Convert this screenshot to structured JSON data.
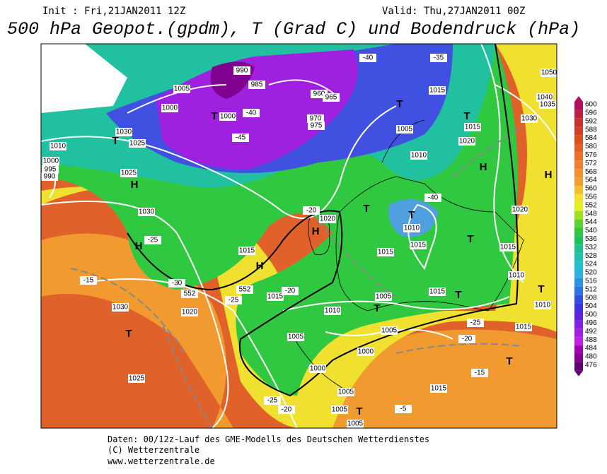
{
  "header": {
    "init": "Init : Fri,21JAN2011 12Z",
    "valid": "Valid: Thu,27JAN2011 00Z",
    "title": "500 hPa Geopot.(gpdm), T (Grad C) und Bodendruck (hPa)"
  },
  "colorbar": {
    "labels": [
      "600",
      "596",
      "592",
      "588",
      "584",
      "580",
      "576",
      "572",
      "568",
      "564",
      "560",
      "556",
      "552",
      "548",
      "544",
      "540",
      "536",
      "532",
      "528",
      "524",
      "520",
      "516",
      "512",
      "508",
      "504",
      "500",
      "496",
      "492",
      "488",
      "484",
      "480",
      "476"
    ]
  },
  "map": {
    "labels": [
      "990",
      "985",
      "1005",
      "1000",
      "T",
      "1000",
      "960",
      "965",
      "970",
      "975",
      "-40",
      "-45",
      "T",
      "1015",
      "-35",
      "-40",
      "T",
      "1015",
      "1020",
      "1005",
      "1010",
      "H",
      "T",
      "1010",
      "-40",
      "H",
      "1030",
      "1050",
      "1040",
      "1035",
      "T",
      "1030",
      "1025",
      "1010",
      "1000",
      "995",
      "990",
      "H",
      "1025",
      "1030",
      "H",
      "-25",
      "-30",
      "552",
      "-15",
      "1030",
      "1020",
      "-25",
      "T",
      "1025",
      "H",
      "1020",
      "-20",
      "H",
      "1015",
      "552",
      "1015",
      "-20",
      "T",
      "1015",
      "1015",
      "T",
      "1015",
      "T",
      "1005",
      "1010",
      "1005",
      "1005",
      "1000",
      "1000",
      "T",
      "1015",
      "-25",
      "1015",
      "-20",
      "T",
      "-15",
      "1015",
      "1005",
      "1005",
      "T",
      "1005",
      "-5",
      "-25",
      "-20",
      "T",
      "1010",
      "1020",
      "1010"
    ]
  },
  "footer": {
    "lines": [
      "Daten: 00/12z-Lauf des GME-Modells des Deutschen Wetterdienstes",
      "(C) Wetterzentrale",
      "www.wetterzentrale.de"
    ]
  }
}
